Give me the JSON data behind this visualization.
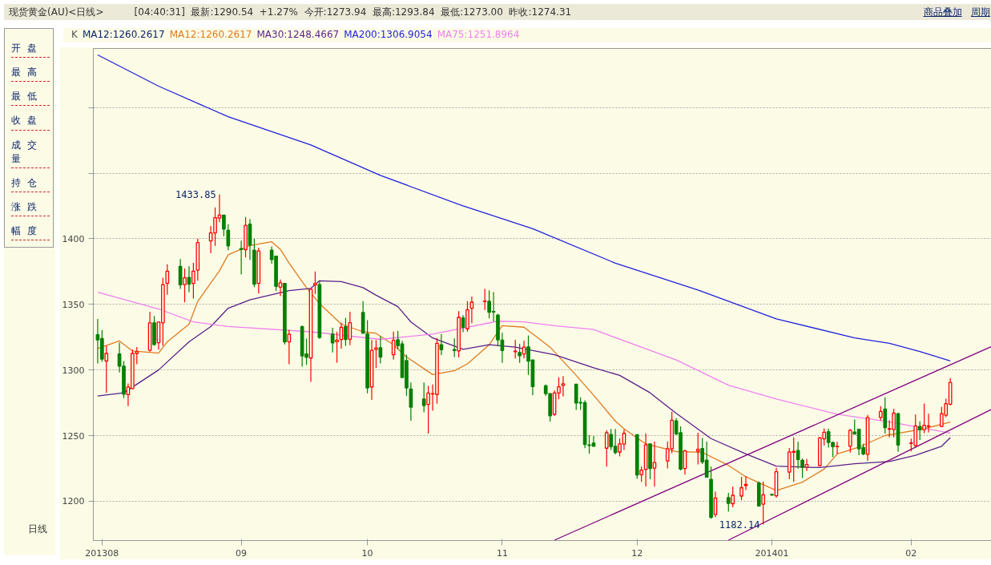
{
  "chart_data": {
    "type": "candlestick",
    "title": "现货黄金(AU)<日线>",
    "annotations": [
      "[04:40:31]",
      "最新:1290.54",
      "+1.27%",
      "今开:1273.94",
      "最高:1293.84",
      "最低:1273.00",
      "昨收:1274.31",
      "商品叠加",
      "周期",
      "开盘",
      "最高",
      "最低",
      "收盘",
      "成交量",
      "持仓",
      "涨跌",
      "幅度",
      "日线",
      "K",
      "MA12:1260.2617",
      {
        "text": "1433.85",
        "x": "2013-08-28",
        "y": 1433.85
      },
      {
        "text": "1182.14",
        "x": "2013-12-31",
        "y": 1182.14
      }
    ],
    "x": [
      "2013-07-31",
      "2013-08-01",
      "2013-08-02",
      "2013-08-05",
      "2013-08-06",
      "2013-08-07",
      "2013-08-08",
      "2013-08-09",
      "2013-08-12",
      "2013-08-13",
      "2013-08-14",
      "2013-08-15",
      "2013-08-16",
      "2013-08-19",
      "2013-08-20",
      "2013-08-21",
      "2013-08-22",
      "2013-08-23",
      "2013-08-26",
      "2013-08-27",
      "2013-08-28",
      "2013-08-29",
      "2013-08-30",
      "2013-09-02",
      "2013-09-03",
      "2013-09-04",
      "2013-09-05",
      "2013-09-06",
      "2013-09-09",
      "2013-09-10",
      "2013-09-11",
      "2013-09-12",
      "2013-09-13",
      "2013-09-16",
      "2013-09-17",
      "2013-09-18",
      "2013-09-19",
      "2013-09-20",
      "2013-09-23",
      "2013-09-24",
      "2013-09-25",
      "2013-09-26",
      "2013-09-27",
      "2013-09-30",
      "2013-10-01",
      "2013-10-02",
      "2013-10-03",
      "2013-10-04",
      "2013-10-07",
      "2013-10-08",
      "2013-10-09",
      "2013-10-10",
      "2013-10-11",
      "2013-10-14",
      "2013-10-15",
      "2013-10-16",
      "2013-10-17",
      "2013-10-18",
      "2013-10-21",
      "2013-10-22",
      "2013-10-23",
      "2013-10-24",
      "2013-10-25",
      "2013-10-28",
      "2013-10-29",
      "2013-10-30",
      "2013-10-31",
      "2013-11-01",
      "2013-11-04",
      "2013-11-05",
      "2013-11-06",
      "2013-11-07",
      "2013-11-08",
      "2013-11-11",
      "2013-11-12",
      "2013-11-13",
      "2013-11-14",
      "2013-11-15",
      "2013-11-18",
      "2013-11-19",
      "2013-11-20",
      "2013-11-21",
      "2013-11-22",
      "2013-11-25",
      "2013-11-26",
      "2013-11-27",
      "2013-11-28",
      "2013-11-29",
      "2013-12-02",
      "2013-12-03",
      "2013-12-04",
      "2013-12-05",
      "2013-12-06",
      "2013-12-09",
      "2013-12-10",
      "2013-12-11",
      "2013-12-12",
      "2013-12-13",
      "2013-12-16",
      "2013-12-17",
      "2013-12-18",
      "2013-12-19",
      "2013-12-20",
      "2013-12-23",
      "2013-12-24",
      "2013-12-26",
      "2013-12-27",
      "2013-12-30",
      "2013-12-31",
      "2014-01-02",
      "2014-01-03",
      "2014-01-06",
      "2014-01-07",
      "2014-01-08",
      "2014-01-09",
      "2014-01-10",
      "2014-01-13",
      "2014-01-14",
      "2014-01-15",
      "2014-01-16",
      "2014-01-17",
      "2014-01-20",
      "2014-01-21",
      "2014-01-22",
      "2014-01-23",
      "2014-01-24",
      "2014-01-27",
      "2014-01-28",
      "2014-01-29",
      "2014-01-30",
      "2014-01-31",
      "2014-02-03",
      "2014-02-04",
      "2014-02-05",
      "2014-02-06",
      "2014-02-07",
      "2014-02-10",
      "2014-02-11",
      "2014-02-12"
    ],
    "ohlc": [
      [
        1326.8,
        1338.8,
        1304.9,
        1322.9
      ],
      [
        1323.9,
        1330.5,
        1306.2,
        1308.3
      ],
      [
        1306.8,
        1318.4,
        1282.5,
        1312.6
      ],
      [
        1312.2,
        1320.8,
        1298.1,
        1302.9
      ],
      [
        1302.9,
        1306.8,
        1278.6,
        1281.6
      ],
      [
        1281.2,
        1289.7,
        1272.4,
        1287.0
      ],
      [
        1285.8,
        1315.5,
        1285.4,
        1312.6
      ],
      [
        1312.6,
        1317.5,
        1304.3,
        1314.0
      ],
      [
        1315.0,
        1344.3,
        1314.0,
        1335.9
      ],
      [
        1335.9,
        1341.2,
        1318.4,
        1319.4
      ],
      [
        1320.8,
        1337.0,
        1315.5,
        1336.5
      ],
      [
        1335.9,
        1370.3,
        1318.4,
        1365.0
      ],
      [
        1366.0,
        1380.6,
        1357.3,
        1375.3
      ],
      [
        1379.0,
        1384.5,
        1361.7,
        1364.9
      ],
      [
        1365.0,
        1377.3,
        1351.5,
        1370.3
      ],
      [
        1370.5,
        1379.0,
        1359.2,
        1365.4
      ],
      [
        1366.0,
        1381.6,
        1354.4,
        1375.3
      ],
      [
        1376.1,
        1400.0,
        1368.0,
        1397.1
      ],
      [
        1398.4,
        1409.7,
        1388.9,
        1404.5
      ],
      [
        1404.5,
        1423.9,
        1394.6,
        1416.1
      ],
      [
        1415.7,
        1433.85,
        1412.6,
        1418.1
      ],
      [
        1418.1,
        1418.1,
        1401.9,
        1407.4
      ],
      [
        1406.4,
        1411.1,
        1391.3,
        1394.6
      ],
      [
        1392.6,
        1398.6,
        1372.8,
        1391.8
      ],
      [
        1391.7,
        1416.5,
        1385.8,
        1410.3
      ],
      [
        1411.1,
        1415.0,
        1383.9,
        1395.1
      ],
      [
        1391.3,
        1400.0,
        1363.1,
        1365.4
      ],
      [
        1366.0,
        1393.2,
        1358.3,
        1390.7
      ],
      [
        1391.3,
        1394.2,
        1381.0,
        1384.1
      ],
      [
        1386.8,
        1387.0,
        1360.2,
        1363.7
      ],
      [
        1363.1,
        1368.9,
        1356.3,
        1366.4
      ],
      [
        1366.0,
        1366.4,
        1319.4,
        1321.4
      ],
      [
        1321.4,
        1330.7,
        1304.3,
        1327.2
      ],
      [
        1333.0,
        1334.0,
        1302.5,
        1310.7
      ],
      [
        1312.2,
        1323.9,
        1303.9,
        1309.7
      ],
      [
        1309.1,
        1362.0,
        1290.9,
        1361.6
      ],
      [
        1364.7,
        1375.1,
        1357.9,
        1366.0
      ],
      [
        1365.1,
        1368.4,
        1323.8,
        1324.8
      ],
      [
        1327.3,
        1332.1,
        1313.3,
        1320.7
      ],
      [
        1321.5,
        1329.2,
        1305.5,
        1322.8
      ],
      [
        1323.2,
        1336.0,
        1316.2,
        1332.5
      ],
      [
        1333.1,
        1339.7,
        1318.3,
        1323.2
      ],
      [
        1323.4,
        1344.4,
        1318.9,
        1336.0
      ],
      [
        1343.8,
        1352.5,
        1327.9,
        1327.9
      ],
      [
        1327.5,
        1338.0,
        1282.2,
        1286.3
      ],
      [
        1287.1,
        1322.8,
        1277.2,
        1315.0
      ],
      [
        1315.6,
        1322.8,
        1301.5,
        1316.8
      ],
      [
        1317.0,
        1325.7,
        1305.0,
        1309.8
      ],
      [
        1311.6,
        1329.2,
        1307.9,
        1322.6
      ],
      [
        1323.0,
        1329.8,
        1315.6,
        1318.5
      ],
      [
        1319.9,
        1322.2,
        1294.3,
        1294.3
      ],
      [
        1307.1,
        1311.7,
        1280.3,
        1286.3
      ],
      [
        1285.5,
        1290.4,
        1261.3,
        1271.7
      ],
      [
        1277.8,
        1290.4,
        1267.7,
        1272.9
      ],
      [
        1273.7,
        1287.9,
        1251.6,
        1282.4
      ],
      [
        1281.7,
        1289.0,
        1269.0,
        1282.0
      ],
      [
        1281.3,
        1324.4,
        1274.3,
        1320.3
      ],
      [
        1319.3,
        1327.3,
        1311.4,
        1315.4
      ],
      [
        1315.6,
        1324.0,
        1309.8,
        1314.9
      ],
      [
        1314.5,
        1344.8,
        1309.6,
        1340.1
      ],
      [
        1339.7,
        1341.8,
        1328.8,
        1332.5
      ],
      [
        1331.4,
        1352.5,
        1329.2,
        1345.9
      ],
      [
        1347.1,
        1356.0,
        1335.6,
        1351.7
      ],
      [
        1352.1,
        1361.8,
        1345.7,
        1352.5
      ],
      [
        1352.3,
        1360.7,
        1339.3,
        1344.0
      ],
      [
        1344.6,
        1359.3,
        1337.0,
        1344.2
      ],
      [
        1341.8,
        1342.8,
        1318.0,
        1323.0
      ],
      [
        1322.8,
        1328.3,
        1305.5,
        1314.9
      ],
      [
        1313.9,
        1323.0,
        1308.8,
        1314.3
      ],
      [
        1313.3,
        1319.9,
        1305.5,
        1310.8
      ],
      [
        1312.1,
        1322.2,
        1308.8,
        1317.4
      ],
      [
        1317.6,
        1326.3,
        1296.2,
        1306.7
      ],
      [
        1307.7,
        1307.7,
        1280.7,
        1287.3
      ],
      [
        1287.9,
        1289.0,
        1280.3,
        1282.0
      ],
      [
        1282.0,
        1282.0,
        1260.7,
        1265.1
      ],
      [
        1266.2,
        1284.3,
        1264.9,
        1282.5
      ],
      [
        1282.5,
        1294.4,
        1277.7,
        1287.2
      ],
      [
        1288.3,
        1295.3,
        1279.8,
        1289.5
      ],
      [
        1289.1,
        1289.1,
        1269.5,
        1274.8
      ],
      [
        1275.3,
        1279.2,
        1269.5,
        1274.9
      ],
      [
        1275.1,
        1276.9,
        1240.4,
        1243.3
      ],
      [
        1242.9,
        1250.3,
        1236.1,
        1242.5
      ],
      [
        1244.3,
        1249.7,
        1241.9,
        1241.9
      ],
      [
        1240.4,
        1254.2,
        1226.4,
        1252.2
      ],
      [
        1250.9,
        1255.0,
        1239.0,
        1241.6
      ],
      [
        1241.9,
        1255.0,
        1235.7,
        1237.1
      ],
      [
        1237.5,
        1247.8,
        1234.2,
        1243.7
      ],
      [
        1243.5,
        1254.6,
        1239.0,
        1251.7
      ],
      [
        1250.7,
        1250.7,
        1217.1,
        1220.0
      ],
      [
        1220.2,
        1226.4,
        1214.8,
        1223.7
      ],
      [
        1224.3,
        1251.7,
        1211.3,
        1242.9
      ],
      [
        1243.7,
        1243.7,
        1216.7,
        1224.9
      ],
      [
        1225.2,
        1245.4,
        1211.3,
        1229.5
      ],
      [
        1230.7,
        1245.4,
        1224.9,
        1240.0
      ],
      [
        1240.0,
        1268.2,
        1236.5,
        1261.7
      ],
      [
        1261.2,
        1263.3,
        1250.3,
        1251.3
      ],
      [
        1252.2,
        1257.1,
        1223.5,
        1224.5
      ],
      [
        1224.9,
        1239.0,
        1220.2,
        1238.4
      ],
      [
        1238.1,
        1252.2,
        1228.0,
        1239.6
      ],
      [
        1240.2,
        1248.2,
        1228.3,
        1229.9
      ],
      [
        1231.3,
        1245.4,
        1218.3,
        1218.3
      ],
      [
        1216.7,
        1226.4,
        1186.6,
        1187.6
      ],
      [
        1189.9,
        1207.4,
        1187.9,
        1202.5
      ],
      [
        1202.7,
        1206.4,
        1192.0,
        1198.3
      ],
      [
        1198.1,
        1211.3,
        1195.3,
        1204.5
      ],
      [
        1203.9,
        1218.6,
        1200.8,
        1210.3
      ],
      [
        1212.0,
        1219.0,
        1208.5,
        1212.8
      ],
      [
        1213.8,
        1215.1,
        1196.3,
        1196.3
      ],
      [
        1197.7,
        1215.1,
        1182.14,
        1205.0
      ],
      [
        1205.2,
        1205.6,
        1204.1,
        1204.7
      ],
      [
        1204.1,
        1225.4,
        1202.7,
        1222.5
      ],
      [
        1222.1,
        1240.5,
        1216.7,
        1237.6
      ],
      [
        1237.2,
        1248.6,
        1214.7,
        1238.0
      ],
      [
        1238.6,
        1245.3,
        1224.8,
        1231.8
      ],
      [
        1231.2,
        1232.6,
        1217.6,
        1225.8
      ],
      [
        1226.0,
        1232.2,
        1223.1,
        1227.9
      ],
      [
        1227.1,
        1249.0,
        1227.1,
        1248.3
      ],
      [
        1247.5,
        1255.4,
        1242.4,
        1252.5
      ],
      [
        1252.9,
        1255.4,
        1240.9,
        1244.8
      ],
      [
        1244.8,
        1245.3,
        1233.7,
        1241.5
      ],
      [
        1241.5,
        1245.3,
        1236.0,
        1241.9
      ],
      [
        1241.9,
        1255.0,
        1237.0,
        1254.1
      ],
      [
        1252.7,
        1262.2,
        1251.2,
        1251.2
      ],
      [
        1254.8,
        1254.8,
        1235.1,
        1239.9
      ],
      [
        1240.9,
        1243.8,
        1235.1,
        1236.0
      ],
      [
        1235.7,
        1265.7,
        1230.8,
        1263.8
      ],
      [
        1263.8,
        1272.5,
        1261.6,
        1268.4
      ],
      [
        1270.3,
        1279.1,
        1251.6,
        1256.0
      ],
      [
        1254.8,
        1261.6,
        1248.6,
        1255.2
      ],
      [
        1254.5,
        1270.3,
        1248.6,
        1267.1
      ],
      [
        1266.7,
        1267.4,
        1237.6,
        1242.8
      ],
      [
        1244.0,
        1247.7,
        1238.0,
        1244.4
      ],
      [
        1242.4,
        1266.1,
        1240.9,
        1257.4
      ],
      [
        1257.0,
        1260.9,
        1246.7,
        1254.5
      ],
      [
        1254.5,
        1274.4,
        1251.9,
        1257.9
      ],
      [
        1257.0,
        1266.7,
        1252.5,
        1257.4
      ],
      [
        1257.0,
        1271.9,
        1256.4,
        1266.7
      ],
      [
        1265.5,
        1278.1,
        1264.1,
        1274.31
      ],
      [
        1273.94,
        1293.84,
        1273.0,
        1290.54
      ]
    ],
    "colors": [
      "#008000",
      "#008000",
      "#ff0000",
      "#008000",
      "#008000",
      "#ff0000",
      "#ff0000",
      "#ff0000",
      "#ff0000",
      "#008000",
      "#ff0000",
      "#ff0000",
      "#ff0000",
      "#008000",
      "#ff0000",
      "#008000",
      "#ff0000",
      "#ff0000",
      "#ff0000",
      "#ff0000",
      "#ff0000",
      "#008000",
      "#008000",
      "#008000",
      "#ff0000",
      "#008000",
      "#008000",
      "#ff0000",
      "#008000",
      "#008000",
      "#ff0000",
      "#008000",
      "#ff0000",
      "#008000",
      "#008000",
      "#ff0000",
      "#ff0000",
      "#008000",
      "#008000",
      "#ff0000",
      "#ff0000",
      "#008000",
      "#ff0000",
      "#008000",
      "#008000",
      "#ff0000",
      "#ff0000",
      "#008000",
      "#ff0000",
      "#008000",
      "#008000",
      "#008000",
      "#008000",
      "#008000",
      "#ff0000",
      "#ff0000",
      "#ff0000",
      "#008000",
      "#008000",
      "#ff0000",
      "#008000",
      "#ff0000",
      "#ff0000",
      "#ff0000",
      "#008000",
      "#008000",
      "#008000",
      "#008000",
      "#ff0000",
      "#008000",
      "#ff0000",
      "#008000",
      "#008000",
      "#008000",
      "#008000",
      "#ff0000",
      "#ff0000",
      "#ff0000",
      "#008000",
      "#008000",
      "#008000",
      "#008000",
      "#008000",
      "#ff0000",
      "#008000",
      "#008000",
      "#ff0000",
      "#ff0000",
      "#008000",
      "#ff0000",
      "#ff0000",
      "#008000",
      "#ff0000",
      "#ff0000",
      "#ff0000",
      "#008000",
      "#008000",
      "#ff0000",
      "#ff0000",
      "#008000",
      "#008000",
      "#008000",
      "#ff0000",
      "#008000",
      "#ff0000",
      "#ff0000",
      "#ff0000",
      "#008000",
      "#ff0000",
      "#008000",
      "#ff0000",
      "#ff0000",
      "#ff0000",
      "#008000",
      "#008000",
      "#ff0000",
      "#ff0000",
      "#ff0000",
      "#008000",
      "#008000",
      "#ff0000",
      "#ff0000",
      "#008000",
      "#008000",
      "#008000",
      "#ff0000",
      "#ff0000",
      "#008000",
      "#ff0000",
      "#ff0000",
      "#008000",
      "#ff0000",
      "#ff0000",
      "#008000",
      "#ff0000",
      "#ff0000",
      "#ff0000",
      "#ff0000",
      "#ff0000"
    ],
    "series": [
      {
        "type": "line",
        "name": "MA12:1260.2617",
        "color": "#e07a20",
        "x": [
          "2013-07-31",
          "2013-08-05",
          "2013-08-08",
          "2013-08-14",
          "2013-08-16",
          "2013-08-21",
          "2013-08-23",
          "2013-08-28",
          "2013-08-30",
          "2013-09-04",
          "2013-09-09",
          "2013-09-11",
          "2013-09-13",
          "2013-09-17",
          "2013-09-20",
          "2013-09-25",
          "2013-09-30",
          "2013-10-03",
          "2013-10-07",
          "2013-10-10",
          "2013-10-16",
          "2013-10-21",
          "2013-10-24",
          "2013-10-29",
          "2013-11-01",
          "2013-11-06",
          "2013-11-12",
          "2013-11-18",
          "2013-11-22",
          "2013-11-27",
          "2013-11-29",
          "2013-12-04",
          "2013-12-11",
          "2013-12-17",
          "2013-12-23",
          "2013-12-27",
          "2014-01-03",
          "2014-01-09",
          "2014-01-14",
          "2014-01-17",
          "2014-01-22",
          "2014-01-28",
          "2014-01-31",
          "2014-02-06",
          "2014-02-12"
        ],
        "values": [
          1316.3,
          1322.1,
          1314.5,
          1312.8,
          1321.5,
          1334.9,
          1352.3,
          1375.6,
          1387.8,
          1394.8,
          1397.7,
          1391.9,
          1381.4,
          1362.8,
          1350.6,
          1334.9,
          1329.1,
          1327.9,
          1319.2,
          1309.9,
          1296.5,
          1299.4,
          1304.7,
          1319.2,
          1333.7,
          1332.6,
          1317.4,
          1295.9,
          1280.8,
          1261.0,
          1255.2,
          1243.6,
          1237.8,
          1237.2,
          1227.3,
          1218.6,
          1208.1,
          1214.5,
          1224.4,
          1236.0,
          1241.3,
          1250.0,
          1251.7,
          1255.2,
          1260.3
        ]
      },
      {
        "type": "line",
        "name": "MA30:1248.4667",
        "color": "#5a1e8c",
        "x": [
          "2013-07-31",
          "2013-08-06",
          "2013-08-14",
          "2013-08-21",
          "2013-08-26",
          "2013-08-30",
          "2013-09-04",
          "2013-09-13",
          "2013-09-18",
          "2013-09-20",
          "2013-09-25",
          "2013-09-30",
          "2013-10-03",
          "2013-10-08",
          "2013-10-11",
          "2013-10-16",
          "2013-10-23",
          "2013-10-29",
          "2013-11-04",
          "2013-11-13",
          "2013-11-22",
          "2013-11-28",
          "2013-12-05",
          "2013-12-11",
          "2013-12-19",
          "2013-12-27",
          "2014-01-03",
          "2014-01-13",
          "2014-01-21",
          "2014-01-29",
          "2014-02-04",
          "2014-02-10",
          "2014-02-12"
        ],
        "values": [
          1280.2,
          1282.6,
          1300.0,
          1321.5,
          1333.1,
          1347.1,
          1353.5,
          1360.5,
          1362.2,
          1368.0,
          1367.4,
          1362.8,
          1357.0,
          1348.3,
          1336.6,
          1324.4,
          1315.7,
          1319.2,
          1317.4,
          1311.6,
          1301.7,
          1295.9,
          1282.6,
          1266.9,
          1247.7,
          1236.0,
          1226.7,
          1225.6,
          1228.5,
          1230.2,
          1234.9,
          1241.9,
          1248.5
        ]
      },
      {
        "type": "line",
        "name": "MA200:1306.9054",
        "color": "#2222dd",
        "x": [
          "2013-07-31",
          "2013-08-14",
          "2013-08-30",
          "2013-09-18",
          "2013-10-04",
          "2013-10-23",
          "2013-11-08",
          "2013-11-27",
          "2013-12-16",
          "2014-01-03",
          "2014-01-21",
          "2014-01-29",
          "2014-02-05",
          "2014-02-12"
        ],
        "values": [
          1540.1,
          1516.3,
          1493.0,
          1471.5,
          1448.3,
          1425.0,
          1407.6,
          1381.4,
          1361.0,
          1339.0,
          1324.4,
          1320.3,
          1314.0,
          1306.9
        ]
      },
      {
        "type": "line",
        "name": "MA75:1251.8964",
        "color": "#f080f0",
        "x": [
          "2013-07-31",
          "2013-08-14",
          "2013-08-22",
          "2013-08-30",
          "2013-09-18",
          "2013-10-04",
          "2013-10-16",
          "2013-10-31",
          "2013-11-06",
          "2013-11-13",
          "2013-11-22",
          "2013-12-11",
          "2013-12-23",
          "2014-01-03",
          "2014-01-17",
          "2014-01-29",
          "2014-02-12"
        ],
        "values": [
          1359.3,
          1346.5,
          1336.6,
          1333.1,
          1329.1,
          1323.3,
          1327.3,
          1337.2,
          1336.6,
          1333.7,
          1330.8,
          1307.6,
          1288.4,
          1277.9,
          1266.3,
          1260.5,
          1251.9
        ]
      },
      {
        "type": "line",
        "color": "#800080",
        "x": [
          "2013-11-13",
          "2014-02-22"
        ],
        "values": [
          1170.3,
          1318.6
        ]
      },
      {
        "type": "line",
        "color": "#800080",
        "x": [
          "2013-12-23",
          "2014-02-22"
        ],
        "values": [
          1170.3,
          1270.9
        ]
      }
    ],
    "xlim": [
      "2013-07-30",
      "2014-02-22"
    ],
    "xticks": [
      {
        "value": "2013-08-01",
        "label": "201308"
      },
      {
        "value": "2013-09-02",
        "label": "09"
      },
      {
        "value": "2013-10-01",
        "label": "10"
      },
      {
        "value": "2013-11-01",
        "label": "11"
      },
      {
        "value": "2013-12-02",
        "label": "12"
      },
      {
        "value": "2014-01-02",
        "label": "201401"
      },
      {
        "value": "2014-02-03",
        "label": "02"
      }
    ],
    "ylim": [
      1170,
      1545
    ],
    "yticks": [
      1200,
      1250,
      1300,
      1350,
      1400,
      {
        "value": 1450,
        "label": null
      },
      {
        "value": 1500,
        "label": null
      }
    ],
    "grid": "y",
    "legend": "top left"
  }
}
